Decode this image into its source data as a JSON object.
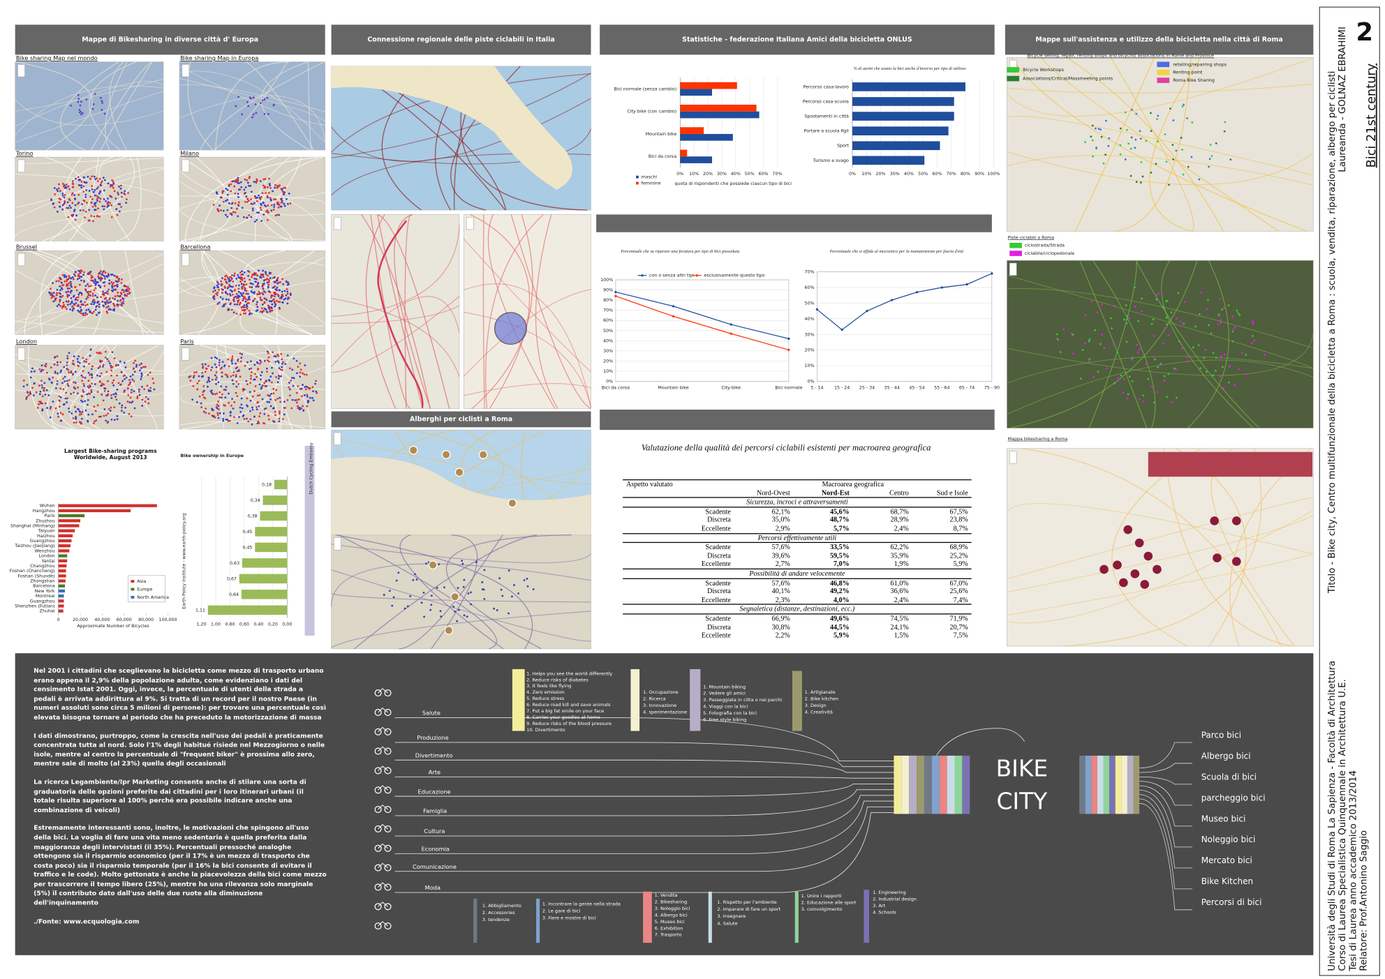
{
  "sidebar": {
    "number": "2",
    "subtitle": "Bici 21st century",
    "student": "Laureanda - GOLNAZ EBRAHIMI",
    "title": "Titolo - Bike city, Centro multifunzionale della bicicletta a Roma : scuola, vendita, riparazione, albergo per ciclisti",
    "university": "Università degli Studi di Roma La Sapienza - Facoltà di Architettura",
    "course": "Corso di Laurea Specialistica Quinquennale in Architettura U.E.",
    "year": "Tesi di Laurea anno accademico 2013/2014",
    "advisor": "Relatore: Prof.Antonino Saggio"
  },
  "headers": [
    "Mappe di Bikesharing in diverse città d' Europa",
    "Connessione regionale delle piste ciclabili in Italia",
    "Statistiche - federazione Italiana Amici della bicicletta ONLUS",
    "Mappe sull'assistenza e utilizzo della bicicletta nella città di Roma",
    "Alberghi per ciclisti a Roma"
  ],
  "city_maps": [
    "Bike sharing Map nel mondo",
    "Bike sharing Map in Europa",
    "Torino",
    "Milano",
    "Brussel",
    "Barcellona",
    "London",
    "Paris"
  ],
  "rome_maps": {
    "shops_title": "Bicycle selling, repair, renting shops and bicyclist associations in Rome and Province",
    "shops_legend": [
      {
        "name": "Bicycle Workshops",
        "color": "#33cc33"
      },
      {
        "name": "Associations/Critical/Massmeeting points",
        "color": "#2e7d32"
      },
      {
        "name": "retailing/repairing shops",
        "color": "#4a6ee0"
      },
      {
        "name": "Renting point",
        "color": "#f2d23c"
      },
      {
        "name": "Roma Bike Sharing",
        "color": "#e040a0"
      }
    ],
    "paths_title": "Piste ciclabili a Roma",
    "paths_legend": [
      {
        "name": "ciclostrada/Strada",
        "color": "#33cc33"
      },
      {
        "name": "ciclabile/ciclopedonale",
        "color": "#e020e0"
      }
    ],
    "sharing_title": "Mappa bikesharing a Roma"
  },
  "chart_data": [
    {
      "type": "hbar",
      "categories": [
        "Bici normale (senza cambio)",
        "City bike (con cambio)",
        "Mountain bike",
        "Bici da corsa"
      ],
      "series": [
        {
          "name": "maschi",
          "color": "#1f4e9c",
          "values": [
            23,
            57,
            38,
            23
          ]
        },
        {
          "name": "femmine",
          "color": "#ff3300",
          "values": [
            41,
            55,
            17,
            5
          ]
        }
      ],
      "x_label": "quota di rispondenti che possiede ciascun tipo di bici",
      "xlim": [
        0,
        70
      ],
      "xticks": [
        {
          "value": 0,
          "label": "0%"
        },
        {
          "value": 10,
          "label": "10%"
        },
        {
          "value": 20,
          "label": "20%"
        },
        {
          "value": 30,
          "label": "30%"
        },
        {
          "value": 40,
          "label": "40%"
        },
        {
          "value": 50,
          "label": "50%"
        },
        {
          "value": 60,
          "label": "60%"
        },
        {
          "value": 70,
          "label": "70%"
        }
      ],
      "grid": true,
      "legend": "bottom-left"
    },
    {
      "type": "hbar",
      "title": "% di utenti che usano la bici anche d'inverso per tipo di utilizzo",
      "categories": [
        "Percorso casa-lavoro",
        "Percorso casa-scuola",
        "Spostamenti in città",
        "Portare a scuola figli",
        "Sport",
        "Turismo e svago"
      ],
      "values": [
        80,
        72,
        72,
        68,
        62,
        51
      ],
      "color": "#1f4e9c",
      "xlim": [
        0,
        100
      ],
      "xticks": [
        {
          "value": 0,
          "label": "0%"
        },
        {
          "value": 10,
          "label": "10%"
        },
        {
          "value": 20,
          "label": "20%"
        },
        {
          "value": 30,
          "label": "30%"
        },
        {
          "value": 40,
          "label": "40%"
        },
        {
          "value": 50,
          "label": "50%"
        },
        {
          "value": 60,
          "label": "60%"
        },
        {
          "value": 70,
          "label": "70%"
        },
        {
          "value": 80,
          "label": "80%"
        },
        {
          "value": 90,
          "label": "90%"
        },
        {
          "value": 100,
          "label": "100%"
        }
      ],
      "grid": true
    },
    {
      "type": "line",
      "title": "Percentuale che sa riparare una foratura per tipo di bici posseduta",
      "categories": [
        "Bici da corsa",
        "Mountain bike",
        "City-bike",
        "Bici normale"
      ],
      "series": [
        {
          "name": "con o senza altri tipi",
          "color": "#1f4e9c",
          "values": [
            88,
            74,
            56,
            42
          ]
        },
        {
          "name": "esclusivamente questo tipo",
          "color": "#ff3300",
          "values": [
            84,
            64,
            47,
            31
          ]
        }
      ],
      "ylim": [
        0,
        100
      ],
      "yticks": [
        {
          "value": 0,
          "label": "0%"
        },
        {
          "value": 10,
          "label": "10%"
        },
        {
          "value": 20,
          "label": "20%"
        },
        {
          "value": 30,
          "label": "30%"
        },
        {
          "value": 40,
          "label": "40%"
        },
        {
          "value": 50,
          "label": "50%"
        },
        {
          "value": 60,
          "label": "60%"
        },
        {
          "value": 70,
          "label": "70%"
        },
        {
          "value": 80,
          "label": "80%"
        },
        {
          "value": 90,
          "label": "90%"
        },
        {
          "value": 100,
          "label": "100%"
        }
      ],
      "grid": true,
      "legend": "top"
    },
    {
      "type": "line",
      "title": "Percentuale che si affida al meccanico per la manutenzione per fascia d'età",
      "categories": [
        "5 - 14",
        "15 - 24",
        "25 - 34",
        "35 - 44",
        "45 - 54",
        "55 - 64",
        "65 - 74",
        "75 - 90"
      ],
      "values": [
        46,
        33,
        45,
        52,
        57,
        60,
        62,
        69
      ],
      "color": "#1f4e9c",
      "ylim": [
        0,
        70
      ],
      "yticks": [
        {
          "value": 0,
          "label": "0%"
        },
        {
          "value": 10,
          "label": "10%"
        },
        {
          "value": 20,
          "label": "20%"
        },
        {
          "value": 30,
          "label": "30%"
        },
        {
          "value": 40,
          "label": "40%"
        },
        {
          "value": 50,
          "label": "50%"
        },
        {
          "value": 60,
          "label": "60%"
        },
        {
          "value": 70,
          "label": "70%"
        }
      ],
      "grid": true
    },
    {
      "type": "hbar",
      "title": "Largest Bike-sharing programs Worldwide, August 2013",
      "categories": [
        "Wuhan",
        "Hangzhou",
        "Paris",
        "Zhuzhou",
        "Shanghai (Minhang)",
        "Taiyuan",
        "Haizhou",
        "Guangzhou",
        "Taizhou (Jiaojiang)",
        "Wenzhou",
        "London",
        "Yantai",
        "Changzhou",
        "Foshan (Chancheng)",
        "Foshan (Shunde)",
        "Zhongshan",
        "Barcelona",
        "New York",
        "Montreal",
        "Guangzhou",
        "Shenzhen (Futian)",
        "Zhuhai"
      ],
      "values": [
        90000,
        66000,
        23900,
        20000,
        19000,
        15000,
        13000,
        12000,
        11000,
        10000,
        8000,
        8000,
        7500,
        7000,
        7000,
        6500,
        6000,
        6000,
        5000,
        5000,
        5000,
        4500
      ],
      "bar_colors": [
        "#d0312d",
        "#d0312d",
        "#4e7a27",
        "#d0312d",
        "#d0312d",
        "#d0312d",
        "#d0312d",
        "#d0312d",
        "#d0312d",
        "#d0312d",
        "#4e7a27",
        "#d0312d",
        "#d0312d",
        "#d0312d",
        "#d0312d",
        "#d0312d",
        "#4e7a27",
        "#3b6fb6",
        "#3b6fb6",
        "#d0312d",
        "#d0312d",
        "#d0312d"
      ],
      "legend_items": [
        {
          "name": "Asia",
          "color": "#d0312d"
        },
        {
          "name": "Europe",
          "color": "#4e7a27"
        },
        {
          "name": "North America",
          "color": "#3b6fb6"
        }
      ],
      "x_label": "Approximate Number of Bicycles",
      "xlim": [
        0,
        100000
      ],
      "xticks": [
        0,
        {
          "value": 20000,
          "label": "20,000"
        },
        {
          "value": 40000,
          "label": "40,000"
        },
        {
          "value": 60000,
          "label": "60,000"
        },
        {
          "value": 80000,
          "label": "80,000"
        },
        {
          "value": 100000,
          "label": "100,000"
        }
      ],
      "grid": false,
      "legend": "bottom-right"
    },
    {
      "type": "hbar",
      "title": "Bike ownership in Europe",
      "categories": [
        null,
        null,
        null,
        null,
        null,
        null,
        null,
        null,
        null
      ],
      "values": [
        0.18,
        0.34,
        0.38,
        0.45,
        0.45,
        0.63,
        0.67,
        0.64,
        1.11
      ],
      "value_labels": [
        "0,18",
        "0,34",
        "0,38",
        "0,45",
        "0,45",
        "0,63",
        "0,67",
        "0,64",
        "1,11"
      ],
      "color": "#9bbb59",
      "source": "Earth Policy Institute - www.earth-policy.org",
      "credit": "Dutch Cycling Embassy",
      "xlim": [
        1.2,
        0
      ],
      "xticks": [
        {
          "value": 1.2,
          "label": "1,20"
        },
        {
          "value": 1,
          "label": "1,00"
        },
        {
          "value": 0.8,
          "label": "0,80"
        },
        {
          "value": 0.6,
          "label": "0,60"
        },
        {
          "value": 0.4,
          "label": "0,40"
        },
        {
          "value": 0.2,
          "label": "0,20"
        },
        {
          "value": 0,
          "label": "0,00"
        }
      ],
      "grid": true
    }
  ],
  "table": {
    "title": "Valutazione della qualità dei percorsi ciclabili esistenti per macroarea geografica",
    "row_header": "Aspetto valutato",
    "group_header": "Macroarea geografica",
    "columns": [
      "Nord-Ovest",
      "Nord-Est",
      "Centro",
      "Sud e Isole"
    ],
    "groups": [
      {
        "name": "Sicurezza, incroci e attraversamenti",
        "rows": [
          [
            "Scadente",
            "62,1%",
            "45,6%",
            "68,7%",
            "67,5%"
          ],
          [
            "Discreta",
            "35,0%",
            "48,7%",
            "28,9%",
            "23,8%"
          ],
          [
            "Eccellente",
            "2,9%",
            "5,7%",
            "2,4%",
            "8,7%"
          ]
        ]
      },
      {
        "name": "Percorsi effettivamente utili",
        "rows": [
          [
            "Scadente",
            "57,6%",
            "33,5%",
            "62,2%",
            "68,9%"
          ],
          [
            "Discreta",
            "39,6%",
            "59,5%",
            "35,9%",
            "25,2%"
          ],
          [
            "Eccellente",
            "2,7%",
            "7,0%",
            "1,9%",
            "5,9%"
          ]
        ]
      },
      {
        "name": "Possibilità di andare velocemente",
        "rows": [
          [
            "Scadente",
            "57,6%",
            "46,8%",
            "61,0%",
            "67,0%"
          ],
          [
            "Discreta",
            "40,1%",
            "49,2%",
            "36,6%",
            "25,6%"
          ],
          [
            "Eccellente",
            "2,3%",
            "4,0%",
            "2,4%",
            "7,4%"
          ]
        ]
      },
      {
        "name": "Segnaletica (distanze, destinazioni, ecc.)",
        "rows": [
          [
            "Scadente",
            "66,9%",
            "49,6%",
            "74,5%",
            "71,9%"
          ],
          [
            "Discreta",
            "30,8%",
            "44,5%",
            "24,1%",
            "20,7%"
          ],
          [
            "Eccellente",
            "2,2%",
            "5,9%",
            "1,5%",
            "7,5%"
          ]
        ]
      }
    ]
  },
  "text": {
    "paragraphs": [
      "Nel 2001 i cittadini che sceglievano la bicicletta come mezzo di trasporto urbano erano appena il 2,9% della popolazione adulta, come evidenziano i dati del censimento Istat 2001. Oggi, invece, la percentuale di utenti della strada a pedali è arrivata addirittura al 9%. Si tratta di un record per il nostro Paese (in numeri assoluti sono circa 5 milioni di persone): per trovare una percentuale così elevata bisogna tornare al periodo che ha preceduto la motorizzazione di massa",
      "I dati dimostrano, purtroppo, come la crescita nell'uso dei pedali è praticamente concentrata tutta al nord. Solo l'1% degli habitué risiede nel Mezzogiorno o nelle isole, mentre al centro la percentuale di \"frequent biker\" è prossima allo zero, mentre sale di molto (al 23%) quella degli occasionali",
      "La ricerca Legambiente/Ipr Marketing consente anche di stilare una sorta di graduatoria delle opzioni preferite dai cittadini per i loro itinerari urbani (il totale risulta superiore al 100% perché era possibile indicare anche una combinazione di veicoli)",
      "Estremamente interessanti sono, inoltre, le motivazioni che spingono all'uso della bici. La voglia di fare una vita meno sedentaria è quella preferita dalla maggioranza degli intervistati (il 35%). Percentuali pressoché analoghe ottengono sia il risparmio economico (per il 17% è un mezzo di trasporto che costa poco) sia il risparmio temporale (per il 16% la bici consente di evitare il traffico e le code). Molto gettonata è anche la piacevolezza della bici come mezzo per trascorrere il tempo libero (25%), mentre ha una rilevanza solo marginale (5%) il contributo dato dall'uso delle due ruote alla diminuzione dell'inquinamento"
    ],
    "source": "./Fonte: www.ecquologia.com"
  },
  "diagram": {
    "categories": [
      "Salute",
      "Produzione",
      "Divertimento",
      "Arte",
      "Educazione",
      "Famiglia",
      "Cultura",
      "Economia",
      "Comunicazione",
      "Moda"
    ],
    "lists": [
      {
        "color": "#f4ee9a",
        "items": [
          "1. Helps you see the world differently",
          "2. Reduce risks of diabetes",
          "3. It feels like flying",
          "4. Zero emission",
          "5. Reduce stress",
          "6. Reduce road kill and save animals",
          "7. Put a big fat smile on your face",
          "8. Carries your goodies at home",
          "9. Reduce risks of the blood pressure",
          "10. Divertimento"
        ]
      },
      {
        "color": "#f3efcf",
        "items": [
          "1. Occupazione",
          "2. Ricerca",
          "3. Innovazione",
          "4. sperimentazione"
        ]
      },
      {
        "color": "#b6aec6",
        "items": [
          "1. Mountain biking",
          "2. Vedere gli amici",
          "3. Passeggiata in citta o nei parchi",
          "4. Viaggi con la bici",
          "5. Fotografia con la bici",
          "6. Free style biking"
        ]
      },
      {
        "color": "#9c9a6c",
        "items": [
          "1. Artigianale",
          "2. Bike kitchen",
          "3. Design",
          "4. Creatività"
        ]
      },
      {
        "color": "#6f7a86",
        "items": [
          "1. Abbigliamento",
          "2. Accessories",
          "3. tendenze"
        ]
      },
      {
        "color": "#7fa2cf",
        "items": [
          "1. Incontrare la gente nella strada",
          "2. Le gare di bici",
          "3. Fiere e mostre di bici"
        ]
      },
      {
        "color": "#e98585",
        "items": [
          "1. Vendita",
          "2. Bikesharing",
          "3. Noleggio bici",
          "4. Albergo bici",
          "5. Museo bici",
          "6. Exhibition",
          "7. Trasporto"
        ]
      },
      {
        "color": "#c9dde8",
        "items": [
          "1. Rispetto per l'ambiente",
          "2. Imparare di fare un sport",
          "3. Insegnare",
          "4. Salute"
        ]
      },
      {
        "color": "#8fd49a",
        "items": [
          "1. Unire i rapporti",
          "2. Educazione alle sport",
          "3. coinvolgimento"
        ]
      },
      {
        "color": "#7b72b4",
        "items": [
          "1. Engineering",
          "2. Industrial design",
          "3. Art",
          "4. Schools"
        ]
      }
    ],
    "center": [
      "BIKE",
      "CITY"
    ],
    "functions": [
      "Parco bici",
      "Albergo bici",
      "Scuola di bici",
      "parcheggio bici",
      "Museo bici",
      "Noleggio bici",
      "Mercato bici",
      "Bike Kitchen",
      "Percorsi di bici"
    ]
  }
}
